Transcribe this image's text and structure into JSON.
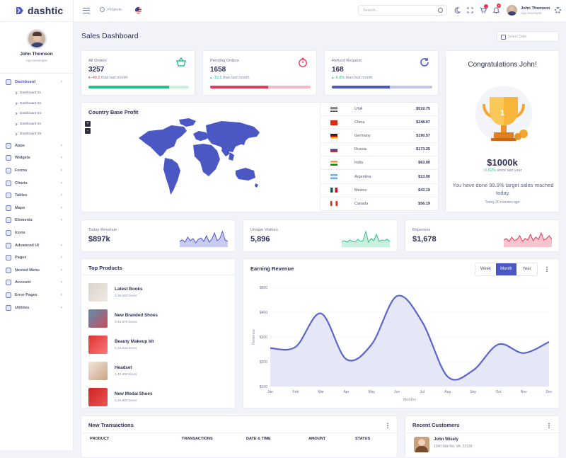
{
  "brand": {
    "name": "dashtic",
    "accent": "#4b57c3"
  },
  "sidebar": {
    "user_name": "John Thomson",
    "user_role": "App Developer",
    "items": [
      {
        "label": "Dashboard",
        "icon": "dashboard-icon",
        "active": true
      },
      {
        "label": "Apps",
        "icon": "apps-icon"
      },
      {
        "label": "Widgets",
        "icon": "widgets-icon"
      },
      {
        "label": "Forms",
        "icon": "forms-icon"
      },
      {
        "label": "Charts",
        "icon": "charts-icon"
      },
      {
        "label": "Tables",
        "icon": "tables-icon"
      },
      {
        "label": "Maps",
        "icon": "maps-icon"
      },
      {
        "label": "Elements",
        "icon": "elements-icon"
      },
      {
        "label": "Icons",
        "icon": "icons-icon"
      },
      {
        "label": "Advanced UI",
        "icon": "advanced-ui-icon"
      },
      {
        "label": "Pages",
        "icon": "pages-icon"
      },
      {
        "label": "Nested Menu",
        "icon": "nested-menu-icon"
      },
      {
        "label": "Account",
        "icon": "account-icon"
      },
      {
        "label": "Error Pages",
        "icon": "error-pages-icon"
      },
      {
        "label": "Utilities",
        "icon": "utilities-icon"
      }
    ],
    "dashboard_sub": [
      "Dashboard 01",
      "Dashboard 02",
      "Dashboard 03",
      "Dashboard 04",
      "Dashboard 05"
    ]
  },
  "topbar": {
    "projects_label": "Projects",
    "search_placeholder": "Search...",
    "notification_count": "4",
    "user_name": "John Thomson",
    "user_role": "App Developer"
  },
  "page": {
    "title": "Sales Dashboard",
    "date_placeholder": "select Date"
  },
  "stats": [
    {
      "label": "All Orders",
      "value": "3257",
      "change": "-49.2",
      "change_suffix": "than last month",
      "direction": "down",
      "progress": 0.8,
      "color": "#27c28a",
      "track": "#c9efdf",
      "icon": "basket-icon"
    },
    {
      "label": "Pending Orders",
      "value": "1658",
      "change": "-19.6",
      "change_suffix": "than last month",
      "direction": "up",
      "progress": 0.58,
      "color": "#e8395a",
      "track": "#f6b8c4",
      "icon": "stopwatch-icon"
    },
    {
      "label": "Refund Request",
      "value": "168",
      "change": "-0.8%",
      "change_suffix": "than last month",
      "direction": "up",
      "progress": 0.58,
      "color": "#4b57c3",
      "track": "#c2c7ea",
      "icon": "refresh-icon"
    }
  ],
  "country_profit": {
    "title": "Country Base Profit",
    "zoom_in": "+",
    "zoom_out": "-",
    "rows": [
      {
        "country": "USA",
        "amount": "$519.75",
        "flag": "us"
      },
      {
        "country": "China",
        "amount": "$248.07",
        "flag": "cn"
      },
      {
        "country": "Germany",
        "amount": "$190.57",
        "flag": "de"
      },
      {
        "country": "Russia",
        "amount": "$173.25",
        "flag": "ru"
      },
      {
        "country": "India",
        "amount": "$63.00",
        "flag": "in"
      },
      {
        "country": "Argentina",
        "amount": "$13.00",
        "flag": "ar"
      },
      {
        "country": "Mexico",
        "amount": "$43.19",
        "flag": "mx"
      },
      {
        "country": "Canada",
        "amount": "$56.19",
        "flag": "ca"
      }
    ]
  },
  "congrats": {
    "title": "Congratulations John!",
    "amount": "$1000k",
    "since_change": "0.82%",
    "since_text": "since last year",
    "message": "You have done 99.9% target sales reached today.",
    "time_ago": "Today 20 minutes ago",
    "trophy_label": "1"
  },
  "mini_stats": [
    {
      "label": "Today Revenue",
      "value": "$897k",
      "color": "#4b57c3",
      "fill": "#c7cbef"
    },
    {
      "label": "Unique Visitors",
      "value": "5,896",
      "color": "#27c28a",
      "fill": "#c9efdf"
    },
    {
      "label": "Expenses",
      "value": "$1,678",
      "color": "#e8395a",
      "fill": "#f6c4cc"
    }
  ],
  "top_products": {
    "title": "Top Products",
    "items": [
      {
        "name": "Latest Books",
        "sub": "2,30,400 times"
      },
      {
        "name": "New Branded Shoes",
        "sub": "3,43,675 times"
      },
      {
        "name": "Beauty Makeup kit",
        "sub": "5,23,324 times"
      },
      {
        "name": "Headset",
        "sub": "1,42,400 times"
      },
      {
        "name": "New Modal Shoes",
        "sub": "3,20,800 times"
      }
    ]
  },
  "earning": {
    "title": "Earning Revenue",
    "tabs": [
      "Week",
      "Month",
      "Year"
    ],
    "active_tab": "Month"
  },
  "chart_data": {
    "type": "area",
    "categories": [
      "Jan",
      "Feb",
      "Mar",
      "Apr",
      "May",
      "Jun",
      "Jul",
      "Aug",
      "Sep",
      "Oct",
      "Nov",
      "Dec"
    ],
    "series": [
      {
        "values": [
          255,
          260,
          395,
          210,
          270,
          465,
          360,
          140,
          165,
          270,
          235,
          280
        ]
      }
    ],
    "xlabel": "Months",
    "ylabel": "Revenue",
    "yticks": [
      "$100",
      "$200",
      "$300",
      "$400",
      "$500"
    ],
    "ylim": [
      100,
      500
    ],
    "color": "#5a65cb",
    "fill": "#e5e7f7"
  },
  "transactions": {
    "title": "New Transactions",
    "columns": [
      "PRODUCT",
      "TRANSACTIONS",
      "DATE & TIME",
      "AMOUNT",
      "STATUS"
    ]
  },
  "customers": {
    "title": "Recent Customers",
    "first_name": "John Wisely",
    "first_address": "1340 Sitz Rd, VA, 23139"
  }
}
